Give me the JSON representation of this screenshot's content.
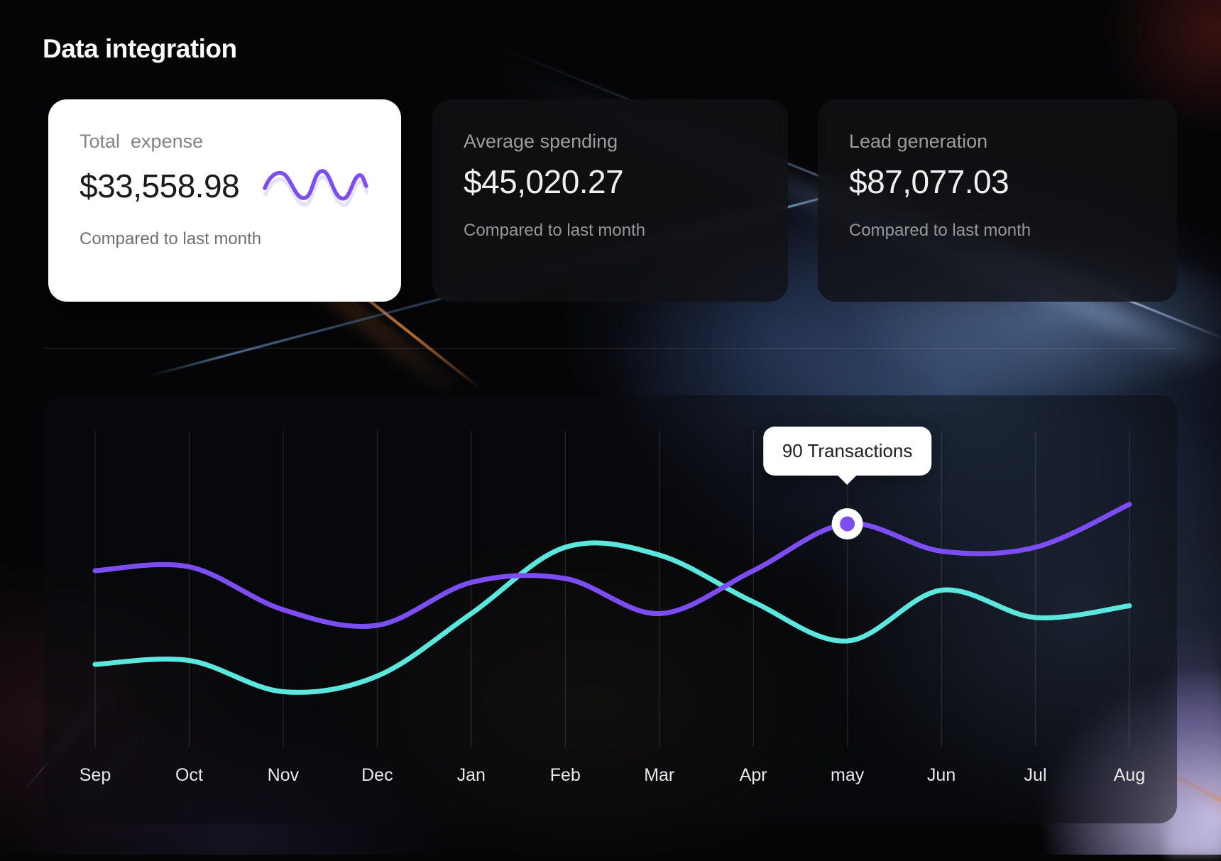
{
  "page": {
    "title": "Data integration"
  },
  "cards": [
    {
      "label": "Total  expense",
      "value": "$33,558.98",
      "note": "Compared to last month",
      "variant": "light"
    },
    {
      "label": "Average spending",
      "value": "$45,020.27",
      "note": "Compared to last month",
      "variant": "dark"
    },
    {
      "label": "Lead generation",
      "value": "$87,077.03",
      "note": "Compared to last month",
      "variant": "dark"
    }
  ],
  "chart_data": {
    "type": "line",
    "title": "",
    "categories": [
      "Sep",
      "Oct",
      "Nov",
      "Dec",
      "Jan",
      "Feb",
      "Mar",
      "Apr",
      "may",
      "Jun",
      "Jul",
      "Aug"
    ],
    "series": [
      {
        "name": "transactions-purple",
        "color": "#7C4DF2",
        "values": [
          78,
          79,
          68,
          64,
          75,
          76,
          67,
          78,
          90,
          83,
          84,
          95
        ]
      },
      {
        "name": "transactions-teal",
        "color": "#5BE7DD",
        "values": [
          54,
          55,
          47,
          51,
          67,
          84,
          82,
          70,
          60,
          73,
          66,
          69
        ]
      }
    ],
    "highlight": {
      "series": 0,
      "index": 8,
      "label": "90 Transactions",
      "unit": "Transactions",
      "value": 90
    },
    "xlabel": "",
    "ylabel": "",
    "ylim": [
      0,
      110
    ],
    "grid": "vertical-only",
    "legend": "none"
  },
  "colors": {
    "accent_purple": "#7C4DF2",
    "accent_teal": "#5BE7DD",
    "sparkline_echo": "#E6E2F8",
    "grid_line": "rgba(255,255,255,0.10)",
    "axis_label": "#E8E8EB",
    "tooltip_bg": "#FFFFFF"
  }
}
